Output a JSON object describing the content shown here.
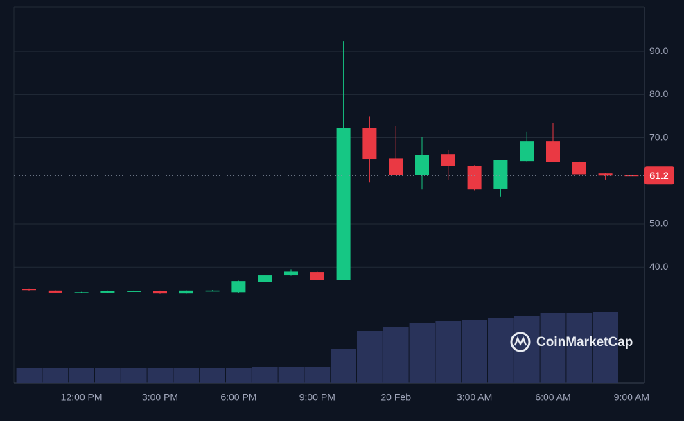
{
  "chart_data": {
    "type": "candlestick",
    "categories": [
      null,
      null,
      "12:00 PM",
      null,
      null,
      "3:00 PM",
      null,
      null,
      "6:00 PM",
      null,
      null,
      "9:00 PM",
      null,
      null,
      "20 Feb",
      null,
      null,
      "3:00 AM",
      null,
      null,
      "6:00 AM",
      null,
      null,
      "9:00 AM"
    ],
    "open": [
      35.0,
      34.6,
      34.1,
      34.1,
      34.4,
      34.5,
      33.9,
      34.5,
      34.2,
      36.6,
      38.1,
      38.9,
      37.1,
      72.3,
      65.2,
      61.4,
      66.2,
      63.5,
      58.2,
      64.6,
      69.1,
      64.4,
      61.7,
      61.3
    ],
    "high": [
      35.1,
      34.7,
      34.3,
      34.6,
      34.6,
      34.6,
      34.7,
      34.7,
      36.9,
      38.2,
      39.5,
      39.0,
      92.4,
      75.0,
      72.8,
      70.1,
      67.2,
      63.6,
      64.9,
      71.4,
      73.3,
      64.5,
      61.8,
      61.4
    ],
    "low": [
      34.6,
      34.0,
      34.0,
      34.0,
      34.3,
      33.8,
      33.8,
      34.4,
      34.1,
      36.5,
      38.0,
      37.0,
      37.0,
      59.6,
      61.3,
      58.0,
      60.3,
      57.8,
      56.3,
      64.5,
      64.3,
      61.2,
      60.3,
      61.1
    ],
    "close": [
      34.7,
      34.1,
      34.2,
      34.5,
      34.5,
      33.9,
      34.6,
      34.6,
      36.8,
      38.1,
      39.0,
      37.1,
      72.3,
      65.1,
      61.4,
      66.0,
      63.5,
      58.0,
      64.8,
      69.1,
      64.4,
      61.5,
      61.2,
      61.2
    ],
    "volume": [
      21,
      22,
      21,
      22,
      22,
      22,
      22,
      22,
      22,
      23,
      23,
      23,
      49,
      75,
      81,
      86,
      89,
      91,
      93,
      97,
      101,
      101,
      102,
      null
    ],
    "up_color": "#16c784",
    "down_color": "#ea3943",
    "volume_color": "#29335a",
    "ylim": [
      13.2,
      100.3
    ],
    "yticks": [
      {
        "value": 40,
        "label": "40.0"
      },
      {
        "value": 50,
        "label": "50.0"
      },
      {
        "value": 70,
        "label": "70.0"
      },
      {
        "value": 80,
        "label": "80.0"
      },
      {
        "value": 90,
        "label": "90.0"
      }
    ],
    "grid": true,
    "last_price": 61.2,
    "watermark": "CoinMarketCap"
  }
}
